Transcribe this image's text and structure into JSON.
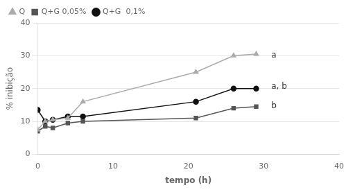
{
  "chart_data": {
    "type": "line",
    "x_label": "tempo (h)",
    "y_label": "% inibição",
    "x": [
      0,
      1,
      2,
      4,
      6,
      21,
      26,
      29
    ],
    "series": [
      {
        "name": "Q",
        "color": "#aaaaaa",
        "marker": "triangle",
        "values": [
          7.5,
          10.0,
          10.5,
          11.0,
          16.0,
          25.0,
          30.0,
          30.5
        ]
      },
      {
        "name": "Q+G 0,05%",
        "color": "#555555",
        "marker": "square",
        "values": [
          7.0,
          8.5,
          8.0,
          9.5,
          10.0,
          11.0,
          14.0,
          14.5
        ]
      },
      {
        "name": "Q+G  0,1%",
        "color": "#111111",
        "marker": "circle",
        "values": [
          13.5,
          10.0,
          10.5,
          11.5,
          11.5,
          16.0,
          20.0,
          20.0
        ]
      }
    ],
    "xlim": [
      0,
      40
    ],
    "ylim": [
      0,
      40
    ],
    "xticks": [
      0,
      10,
      20,
      30,
      40
    ],
    "yticks": [
      0,
      10,
      20,
      30,
      40
    ],
    "annotations": [
      {
        "text": "a",
        "x": 31.0,
        "y": 30.2
      },
      {
        "text": "a, b",
        "x": 31.0,
        "y": 20.5
      },
      {
        "text": "b",
        "x": 31.0,
        "y": 14.7
      }
    ],
    "grid": "y",
    "legend": "upper left"
  }
}
